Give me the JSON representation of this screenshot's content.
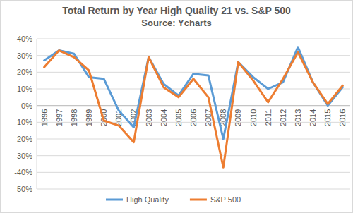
{
  "chart_data": {
    "type": "line",
    "title": "Total Return by Year High Quality 21 vs. S&P 500",
    "subtitle": "Source: Ycharts",
    "categories": [
      "1996",
      "1997",
      "1998",
      "1999",
      "2000",
      "2001",
      "2002",
      "2003",
      "2004",
      "2005",
      "2006",
      "2007",
      "2008",
      "2009",
      "2010",
      "2011",
      "2012",
      "2013",
      "2014",
      "2015",
      "2016"
    ],
    "series": [
      {
        "name": "High Quality",
        "color": "#5b9bd5",
        "values": [
          27,
          33,
          31,
          17,
          16,
          -3,
          -13,
          29,
          13,
          6,
          19,
          18,
          -20,
          26,
          17,
          10,
          14,
          35,
          14,
          0,
          11
        ]
      },
      {
        "name": "S&P 500",
        "color": "#ed7d31",
        "values": [
          23,
          33,
          29,
          21,
          -9,
          -12,
          -22,
          29,
          11,
          5,
          16,
          5,
          -37,
          26,
          15,
          2,
          16,
          32,
          14,
          1,
          12
        ]
      }
    ],
    "ylim": [
      -50,
      40
    ],
    "yticks": [
      {
        "value": -50,
        "label": "-50%"
      },
      {
        "value": -40,
        "label": "-40%"
      },
      {
        "value": -30,
        "label": "-30%"
      },
      {
        "value": -20,
        "label": "-20%"
      },
      {
        "value": -10,
        "label": "-10%"
      },
      {
        "value": 0,
        "label": "0%"
      },
      {
        "value": 10,
        "label": "10%"
      },
      {
        "value": 20,
        "label": "20%"
      },
      {
        "value": 30,
        "label": "30%"
      },
      {
        "value": 40,
        "label": "40%"
      }
    ],
    "grid": true,
    "legend": "bottom"
  }
}
